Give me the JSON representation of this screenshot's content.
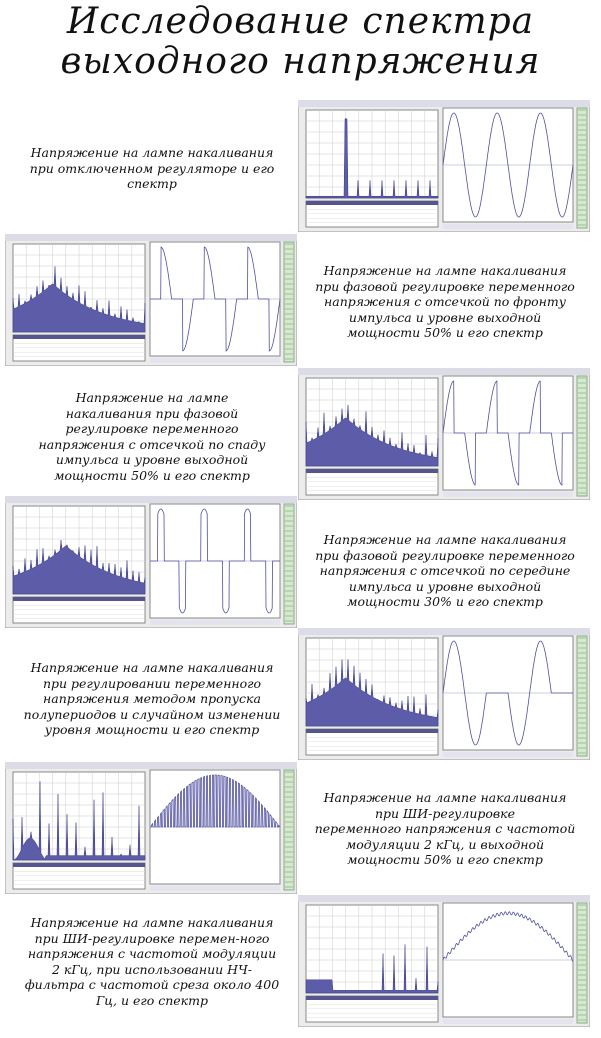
{
  "title": [
    "Исследование спектра",
    "выходного напряжения"
  ],
  "rows": [
    {
      "caption": [
        "Напряжение на лампе накаливания",
        "при отключенном регуляторе и его",
        "спектр"
      ]
    },
    {
      "caption": [
        "Напряжение на лампе накаливания",
        "при фазовой регулировке переменного",
        "напряжения с отсечкой по фронту",
        "импульса и уровне выходной",
        "мощности 50% и его спектр"
      ]
    },
    {
      "caption": [
        "Напряжение на лампе",
        "накаливания при фазовой",
        "регулировке переменного",
        "напряжения с отсечкой по спаду",
        "импульса и уровне выходной",
        "мощности 50% и его спектр"
      ]
    },
    {
      "caption": [
        "Напряжение на лампе накаливания",
        "при фазовой регулировке переменного",
        "напряжения с отсечкой по середине",
        "импульса и уровне выходной",
        "мощности 30% и его спектр"
      ]
    },
    {
      "caption": [
        "Напряжение на лампе накаливания",
        "при регулировании переменного",
        "напряжения методом пропуска",
        "полупериодов и случайном изменении",
        "уровня мощности и его спектр"
      ]
    },
    {
      "caption": [
        "Напряжение на лампе накаливания",
        "при ШИ-регулировке",
        "переменного напряжения с частотой",
        "модуляции 2 кГц, и выходной",
        "мощности 50% и его спектр"
      ]
    },
    {
      "caption": [
        "Напряжение на лампе накаливания",
        "при ШИ-регулировке перемен-ного",
        "напряжения с частотой модуляции",
        "2 кГц, при использовании НЧ-",
        "фильтра с частотой среза около 400",
        "Гц, и его спектр"
      ]
    }
  ]
}
